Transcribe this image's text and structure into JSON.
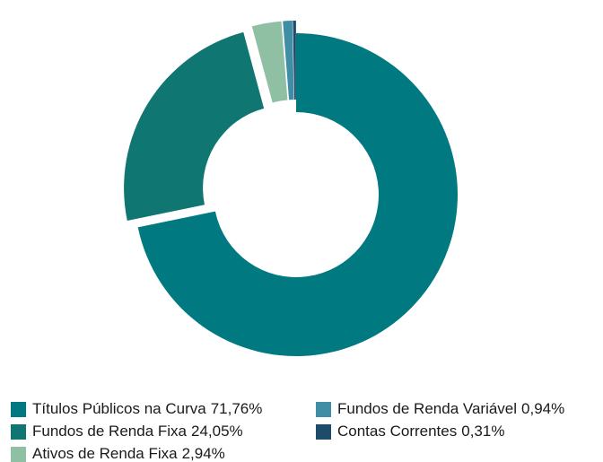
{
  "chart_data": {
    "type": "pie",
    "donut": true,
    "categories": [
      "Títulos Públicos na Curva",
      "Fundos de Renda Fixa",
      "Ativos de Renda Fixa",
      "Fundos de Renda Variável",
      "Contas Correntes"
    ],
    "values": [
      71.76,
      24.05,
      2.94,
      0.94,
      0.31
    ],
    "value_labels": [
      "71,76%",
      "24,05%",
      "2,94%",
      "0,94%",
      "0,31%"
    ],
    "colors": [
      "#007a80",
      "#0f7671",
      "#8fc0a4",
      "#3f8ea6",
      "#1e4b6a"
    ],
    "legend": "bottom"
  }
}
